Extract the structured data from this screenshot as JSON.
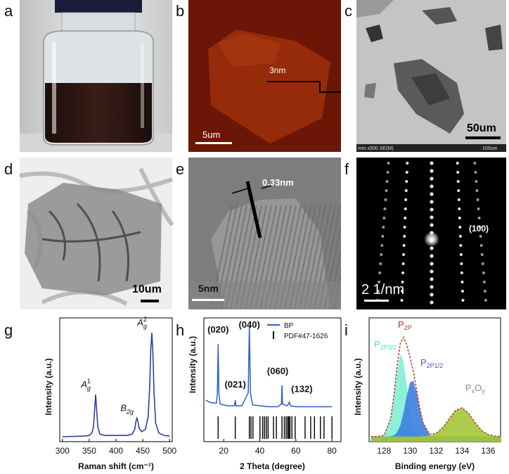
{
  "panels": [
    {
      "label": "a"
    },
    {
      "label": "b",
      "annotations": [
        "3nm",
        "5um"
      ]
    },
    {
      "label": "c",
      "annotations": [
        "50um",
        "mm x500 SE(M)",
        "100um"
      ]
    },
    {
      "label": "d",
      "annotations": [
        "10um"
      ]
    },
    {
      "label": "e",
      "annotations": [
        "0.33nm",
        "5nm"
      ]
    },
    {
      "label": "f",
      "annotations": [
        "(100)",
        "2 1/nm"
      ]
    }
  ],
  "chart_data": [
    {
      "panel_label": "g",
      "type": "raman",
      "xlabel": "Raman shift (cm⁻¹)",
      "ylabel": "Intensity (a.u.)",
      "xlim": [
        295,
        505
      ],
      "xticks": [
        300,
        350,
        400,
        450,
        500
      ],
      "ylim": [
        0,
        1
      ],
      "x": [
        300,
        340,
        350,
        355,
        358,
        360,
        362,
        364,
        366,
        370,
        380,
        420,
        430,
        435,
        437,
        439,
        441,
        443,
        448,
        455,
        460,
        463,
        465,
        467,
        469,
        471,
        474,
        480,
        490,
        500
      ],
      "series": [
        {
          "color": "#2e3fa0",
          "values": [
            0.04,
            0.045,
            0.05,
            0.07,
            0.12,
            0.25,
            0.38,
            0.25,
            0.12,
            0.06,
            0.05,
            0.05,
            0.06,
            0.1,
            0.16,
            0.19,
            0.16,
            0.11,
            0.08,
            0.1,
            0.2,
            0.45,
            0.75,
            0.88,
            0.7,
            0.4,
            0.15,
            0.07,
            0.05,
            0.045
          ]
        }
      ],
      "peak_labels": [
        {
          "base": "A",
          "sub": "g",
          "sup": "1",
          "x": 362
        },
        {
          "base": "B",
          "sub": "2g",
          "x": 439
        },
        {
          "base": "A",
          "sub": "g",
          "sup": "2",
          "x": 467
        }
      ]
    },
    {
      "panel_label": "h",
      "type": "xrd",
      "xlabel": "2 Theta (degree)",
      "ylabel": "Intensity (a.u.)",
      "xlim": [
        9,
        85
      ],
      "xticks": [
        20,
        40,
        60,
        80
      ],
      "ylim": [
        0,
        1
      ],
      "x": [
        10,
        12,
        14,
        16,
        16.5,
        16.9,
        17.3,
        18,
        22,
        26,
        26.4,
        26.8,
        30,
        33.6,
        34.2,
        34.8,
        36,
        40,
        45,
        50,
        52,
        52.3,
        52.6,
        55,
        56,
        56.3,
        57,
        60,
        70,
        80
      ],
      "series": [
        {
          "name": "BP",
          "color": "#2f5ec4",
          "values": [
            0.12,
            0.1,
            0.09,
            0.09,
            0.2,
            0.72,
            0.2,
            0.08,
            0.06,
            0.06,
            0.12,
            0.06,
            0.06,
            0.2,
            0.92,
            0.2,
            0.07,
            0.06,
            0.05,
            0.05,
            0.08,
            0.28,
            0.08,
            0.06,
            0.08,
            0.1,
            0.06,
            0.05,
            0.05,
            0.05
          ]
        },
        {
          "name": "PDF#47-1626",
          "color": "#000000",
          "positions": [
            16.9,
            26.4,
            34.2,
            35.1,
            36.2,
            40.1,
            41.6,
            42.6,
            43.6,
            44.6,
            47.6,
            49.2,
            52.3,
            53.6,
            54.6,
            55.5,
            56.1,
            56.7,
            57.8,
            59.6,
            65.1,
            68.2,
            70.3,
            73.6,
            75.6,
            80
          ]
        }
      ],
      "peak_labels": [
        {
          "text": "(020)",
          "x": 16.9
        },
        {
          "text": "(021)",
          "x": 26.4
        },
        {
          "text": "(040)",
          "x": 34.2
        },
        {
          "text": "(060)",
          "x": 52.3
        },
        {
          "text": "(132)",
          "x": 56.3
        }
      ]
    },
    {
      "panel_label": "i",
      "type": "xps",
      "xlabel": "Binding energy (eV)",
      "ylabel": "Intensity (a.u.)",
      "xlim": [
        126.85,
        136.95
      ],
      "xticks": [
        128,
        130,
        132,
        134,
        136
      ],
      "ylim": [
        0,
        1.2
      ],
      "x": [
        127,
        127.5,
        128,
        128.5,
        128.75,
        129,
        129.25,
        129.5,
        129.75,
        130,
        130.25,
        130.5,
        130.75,
        131,
        131.5,
        132,
        132.5,
        133,
        133.5,
        134,
        134.5,
        135,
        135.5,
        136,
        136.5,
        137
      ],
      "series": [
        {
          "label_parts": [
            "P",
            "2P3/2"
          ],
          "color": "#7ff0d4",
          "label_color": "#4fe3bd",
          "style": "fill",
          "values": [
            0.05,
            0.05,
            0.062,
            0.215,
            0.429,
            0.69,
            0.846,
            0.775,
            0.535,
            0.288,
            0.136,
            0.073,
            0.054,
            0.05,
            0.05,
            0.05,
            0.05,
            0.05,
            0.05,
            0.05,
            0.05,
            0.05,
            0.05,
            0.05,
            0.05,
            0.05
          ]
        },
        {
          "label_parts": [
            "P",
            "2P1/2"
          ],
          "color": "#3d7ee0",
          "label_color": "#5b4db5",
          "style": "fill",
          "values": [
            0.05,
            0.05,
            0.05,
            0.052,
            0.061,
            0.089,
            0.159,
            0.286,
            0.45,
            0.576,
            0.589,
            0.48,
            0.318,
            0.18,
            0.064,
            0.05,
            0.05,
            0.05,
            0.05,
            0.05,
            0.05,
            0.05,
            0.05,
            0.05,
            0.05,
            0.05
          ]
        },
        {
          "label_parts": [
            "P",
            "x",
            "O",
            "y"
          ],
          "color": "#a4c639",
          "label_color": "#9b7fa8",
          "style": "fill",
          "values": [
            0.05,
            0.05,
            0.05,
            0.05,
            0.05,
            0.05,
            0.05,
            0.05,
            0.05,
            0.05,
            0.05,
            0.05,
            0.05,
            0.052,
            0.058,
            0.08,
            0.133,
            0.22,
            0.304,
            0.328,
            0.274,
            0.183,
            0.108,
            0.068,
            0.054,
            0.05
          ]
        },
        {
          "label_parts": [
            "P",
            "2P"
          ],
          "color": "#c0392b",
          "label_color": "#a33a2b",
          "style": "dash",
          "values": [
            0.05,
            0.05,
            0.062,
            0.217,
            0.44,
            0.729,
            0.955,
            1.011,
            0.935,
            0.814,
            0.675,
            0.503,
            0.322,
            0.182,
            0.072,
            0.08,
            0.133,
            0.22,
            0.304,
            0.328,
            0.274,
            0.183,
            0.108,
            0.068,
            0.054,
            0.05
          ]
        }
      ]
    }
  ]
}
